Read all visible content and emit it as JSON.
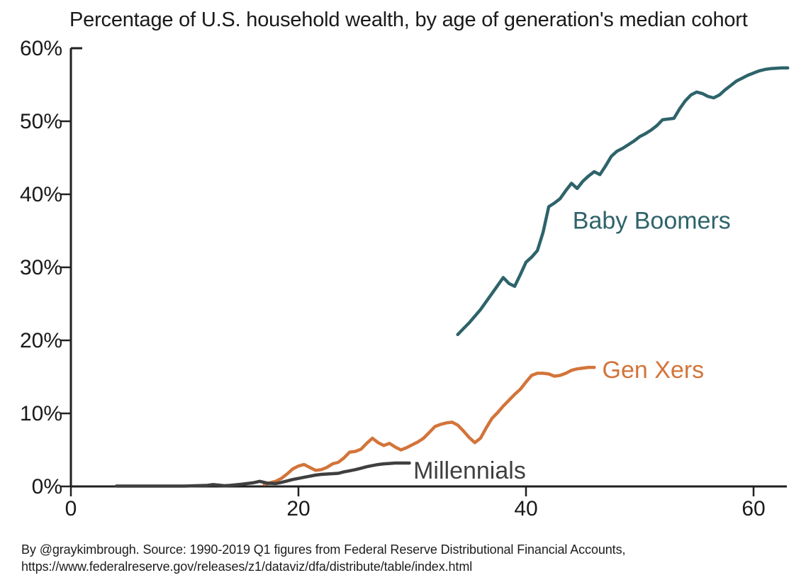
{
  "title": "Percentage of U.S. household wealth, by age of generation's median cohort",
  "source_line1": "By @graykimbrough. Source: 1990-2019 Q1 figures from Federal Reserve Distributional Financial Accounts,",
  "source_line2": "https://www.federalreserve.gov/releases/z1/dataviz/dfa/distribute/table/index.html",
  "colors": {
    "axis": "#221f1f",
    "baby_boomers": "#2e636a",
    "gen_xers": "#d3743a",
    "millennials": "#3f3f3f"
  },
  "chart_data": {
    "type": "line",
    "title": "Percentage of U.S. household wealth, by age of generation's median cohort",
    "xlabel": "",
    "ylabel": "",
    "xlim": [
      0,
      63
    ],
    "ylim": [
      0,
      60
    ],
    "grid": false,
    "legend": "inline-labels-at-line-ends",
    "x_ticks": [
      0,
      20,
      40,
      60
    ],
    "x_tick_labels": [
      "0",
      "20",
      "40",
      "60"
    ],
    "y_ticks": [
      0,
      10,
      20,
      30,
      40,
      50,
      60
    ],
    "y_tick_labels": [
      "0%",
      "10%",
      "20%",
      "30%",
      "40%",
      "50%",
      "60%"
    ],
    "x_axis_meaning": "age of generation's median cohort (years)",
    "y_axis_meaning": "share of U.S. household wealth (%)",
    "series": [
      {
        "name": "Baby Boomers",
        "color": "#2e636a",
        "label_anchor": {
          "age": 44.1,
          "pct": 35.3
        },
        "points": [
          [
            34,
            20.8
          ],
          [
            34.5,
            21.6
          ],
          [
            35,
            22.4
          ],
          [
            35.5,
            23.3
          ],
          [
            36,
            24.2
          ],
          [
            36.5,
            25.3
          ],
          [
            37,
            26.4
          ],
          [
            37.5,
            27.5
          ],
          [
            38,
            28.6
          ],
          [
            38.5,
            27.8
          ],
          [
            39,
            27.4
          ],
          [
            39.5,
            29.0
          ],
          [
            40,
            30.7
          ],
          [
            40.5,
            31.4
          ],
          [
            41,
            32.3
          ],
          [
            41.5,
            34.8
          ],
          [
            42,
            38.3
          ],
          [
            42.5,
            38.8
          ],
          [
            43,
            39.4
          ],
          [
            43.5,
            40.5
          ],
          [
            44,
            41.5
          ],
          [
            44.5,
            40.8
          ],
          [
            45,
            41.8
          ],
          [
            45.5,
            42.5
          ],
          [
            46,
            43.1
          ],
          [
            46.5,
            42.7
          ],
          [
            47,
            43.9
          ],
          [
            47.5,
            45.2
          ],
          [
            48,
            45.9
          ],
          [
            48.5,
            46.3
          ],
          [
            49,
            46.8
          ],
          [
            49.5,
            47.3
          ],
          [
            50,
            47.9
          ],
          [
            50.5,
            48.3
          ],
          [
            51,
            48.8
          ],
          [
            51.5,
            49.4
          ],
          [
            52,
            50.2
          ],
          [
            52.5,
            50.3
          ],
          [
            53,
            50.4
          ],
          [
            53.5,
            51.7
          ],
          [
            54,
            52.8
          ],
          [
            54.5,
            53.6
          ],
          [
            55,
            54.0
          ],
          [
            55.5,
            53.8
          ],
          [
            56,
            53.4
          ],
          [
            56.5,
            53.2
          ],
          [
            57,
            53.6
          ],
          [
            57.5,
            54.3
          ],
          [
            58,
            54.9
          ],
          [
            58.5,
            55.5
          ],
          [
            59,
            55.9
          ],
          [
            59.5,
            56.3
          ],
          [
            60,
            56.6
          ],
          [
            60.5,
            56.9
          ],
          [
            61,
            57.1
          ],
          [
            61.5,
            57.2
          ],
          [
            62,
            57.25
          ],
          [
            62.5,
            57.3
          ],
          [
            63,
            57.3
          ]
        ]
      },
      {
        "name": "Gen Xers",
        "color": "#d3743a",
        "label_anchor": {
          "age": 46.7,
          "pct": 14.85
        },
        "points": [
          [
            17,
            0.3
          ],
          [
            17.5,
            0.5
          ],
          [
            18,
            0.7
          ],
          [
            18.5,
            1.1
          ],
          [
            19,
            1.7
          ],
          [
            19.5,
            2.4
          ],
          [
            20,
            2.8
          ],
          [
            20.5,
            3.0
          ],
          [
            21,
            2.6
          ],
          [
            21.5,
            2.2
          ],
          [
            22,
            2.3
          ],
          [
            22.5,
            2.6
          ],
          [
            23,
            3.1
          ],
          [
            23.5,
            3.3
          ],
          [
            24,
            3.9
          ],
          [
            24.5,
            4.7
          ],
          [
            25,
            4.8
          ],
          [
            25.5,
            5.1
          ],
          [
            26,
            5.9
          ],
          [
            26.5,
            6.6
          ],
          [
            27,
            6.0
          ],
          [
            27.5,
            5.6
          ],
          [
            28,
            5.9
          ],
          [
            28.5,
            5.4
          ],
          [
            29,
            5.0
          ],
          [
            29.5,
            5.3
          ],
          [
            30,
            5.7
          ],
          [
            30.5,
            6.1
          ],
          [
            31,
            6.6
          ],
          [
            31.5,
            7.4
          ],
          [
            32,
            8.2
          ],
          [
            32.5,
            8.5
          ],
          [
            33,
            8.7
          ],
          [
            33.5,
            8.8
          ],
          [
            34,
            8.4
          ],
          [
            34.5,
            7.6
          ],
          [
            35,
            6.7
          ],
          [
            35.5,
            6.0
          ],
          [
            36,
            6.6
          ],
          [
            36.5,
            8.0
          ],
          [
            37,
            9.3
          ],
          [
            37.5,
            10.1
          ],
          [
            38,
            11.0
          ],
          [
            38.5,
            11.8
          ],
          [
            39,
            12.6
          ],
          [
            39.5,
            13.3
          ],
          [
            40,
            14.3
          ],
          [
            40.5,
            15.2
          ],
          [
            41,
            15.5
          ],
          [
            41.5,
            15.5
          ],
          [
            42,
            15.4
          ],
          [
            42.5,
            15.1
          ],
          [
            43,
            15.2
          ],
          [
            43.5,
            15.5
          ],
          [
            44,
            15.9
          ],
          [
            44.5,
            16.1
          ],
          [
            45,
            16.2
          ],
          [
            45.5,
            16.3
          ],
          [
            46,
            16.3
          ]
        ]
      },
      {
        "name": "Millennials",
        "color": "#3f3f3f",
        "label_anchor": {
          "age": 30.1,
          "pct": 1.05
        },
        "points": [
          [
            4,
            0.05
          ],
          [
            5,
            0.05
          ],
          [
            6,
            0.05
          ],
          [
            7,
            0.05
          ],
          [
            8,
            0.05
          ],
          [
            9,
            0.05
          ],
          [
            10,
            0.05
          ],
          [
            11,
            0.1
          ],
          [
            12,
            0.15
          ],
          [
            12.5,
            0.25
          ],
          [
            13.5,
            0.1
          ],
          [
            14,
            0.15
          ],
          [
            15,
            0.3
          ],
          [
            16,
            0.5
          ],
          [
            16.6,
            0.7
          ],
          [
            17.3,
            0.45
          ],
          [
            18,
            0.4
          ],
          [
            18.5,
            0.55
          ],
          [
            19,
            0.75
          ],
          [
            19.5,
            0.95
          ],
          [
            20,
            1.1
          ],
          [
            20.5,
            1.25
          ],
          [
            21,
            1.4
          ],
          [
            21.5,
            1.55
          ],
          [
            22,
            1.65
          ],
          [
            22.5,
            1.7
          ],
          [
            23,
            1.75
          ],
          [
            23.5,
            1.8
          ],
          [
            24,
            2.0
          ],
          [
            24.5,
            2.15
          ],
          [
            25,
            2.3
          ],
          [
            25.5,
            2.5
          ],
          [
            26,
            2.7
          ],
          [
            26.5,
            2.85
          ],
          [
            27,
            3.0
          ],
          [
            27.5,
            3.1
          ],
          [
            28,
            3.15
          ],
          [
            28.5,
            3.2
          ],
          [
            29,
            3.2
          ],
          [
            29.75,
            3.2
          ]
        ]
      }
    ]
  }
}
